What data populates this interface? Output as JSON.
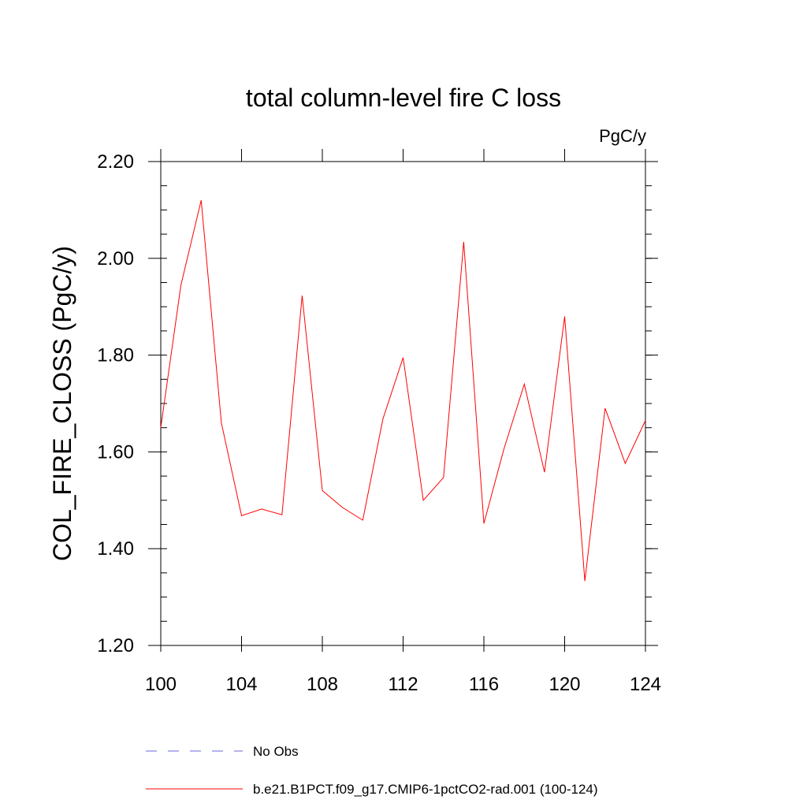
{
  "chart_data": {
    "type": "line",
    "title": "total column-level fire C loss",
    "units_label": "PgC/y",
    "xlabel": "",
    "ylabel": "COL_FIRE_CLOSS  (PgC/y)",
    "xlim": [
      100,
      124
    ],
    "ylim": [
      1.2,
      2.2
    ],
    "x_ticks": [
      100,
      104,
      108,
      112,
      116,
      120,
      124
    ],
    "x_tick_labels": [
      "100",
      "104",
      "108",
      "112",
      "116",
      "120",
      "124"
    ],
    "y_ticks": [
      1.2,
      1.4,
      1.6,
      1.8,
      2.0,
      2.2
    ],
    "y_tick_labels": [
      "1.20",
      "1.40",
      "1.60",
      "1.80",
      "2.00",
      "2.20"
    ],
    "grid": false,
    "legend_position": "bottom",
    "series": [
      {
        "name": "b.e21.B1PCT.f09_g17.CMIP6-1pctCO2-rad.001 (100-124)",
        "color": "#ff0000",
        "dash": "solid",
        "x": [
          100,
          101,
          102,
          103,
          104,
          105,
          106,
          107,
          108,
          109,
          110,
          111,
          112,
          113,
          114,
          115,
          116,
          117,
          118,
          119,
          120,
          121,
          122,
          123,
          124
        ],
        "values": [
          1.65,
          1.945,
          2.12,
          1.66,
          1.468,
          1.482,
          1.47,
          1.923,
          1.52,
          1.485,
          1.459,
          1.668,
          1.795,
          1.5,
          1.547,
          2.034,
          1.452,
          1.607,
          1.74,
          1.558,
          1.88,
          1.333,
          1.69,
          1.576,
          1.665
        ]
      }
    ],
    "legend": [
      {
        "label": "No Obs",
        "color": "#6a6ad8",
        "dash": "dashed"
      },
      {
        "label": "b.e21.B1PCT.f09_g17.CMIP6-1pctCO2-rad.001 (100-124)",
        "color": "#ff0000",
        "dash": "solid"
      }
    ]
  }
}
